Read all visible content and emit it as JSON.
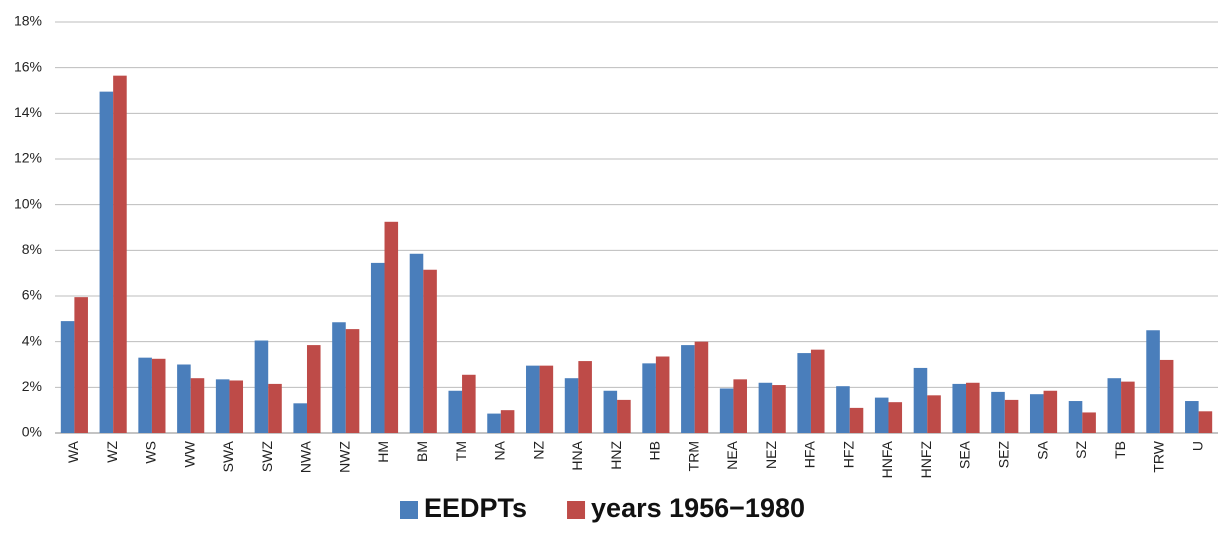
{
  "chart_data": {
    "type": "bar",
    "categories": [
      "WA",
      "WZ",
      "WS",
      "WW",
      "SWA",
      "SWZ",
      "NWA",
      "NWZ",
      "HM",
      "BM",
      "TM",
      "NA",
      "NZ",
      "HNA",
      "HNZ",
      "HB",
      "TRM",
      "NEA",
      "NEZ",
      "HFA",
      "HFZ",
      "HNFA",
      "HNFZ",
      "SEA",
      "SEZ",
      "SA",
      "SZ",
      "TB",
      "TRW",
      "U"
    ],
    "series": [
      {
        "name": "EEDPTs",
        "color": "#4a7ebb",
        "values": [
          4.9,
          14.95,
          3.3,
          3.0,
          2.35,
          4.05,
          1.3,
          4.85,
          7.45,
          7.85,
          1.85,
          0.85,
          2.95,
          2.4,
          1.85,
          3.05,
          3.85,
          1.95,
          2.2,
          3.5,
          2.05,
          1.55,
          2.85,
          2.15,
          1.8,
          1.7,
          1.4,
          2.4,
          4.5,
          1.4
        ]
      },
      {
        "name": "years 1956−1980",
        "color": "#be4b48",
        "values": [
          5.95,
          15.65,
          3.25,
          2.4,
          2.3,
          2.15,
          3.85,
          4.55,
          9.25,
          7.15,
          2.55,
          1.0,
          2.95,
          3.15,
          1.45,
          3.35,
          4.0,
          2.35,
          2.1,
          3.65,
          1.1,
          1.35,
          1.65,
          2.2,
          1.45,
          1.85,
          0.9,
          2.25,
          3.2,
          0.95
        ]
      }
    ],
    "ylim": [
      0,
      18
    ],
    "yticks": [
      {
        "value": 0,
        "label": "0%"
      },
      {
        "value": 2,
        "label": "2%"
      },
      {
        "value": 4,
        "label": "4%"
      },
      {
        "value": 6,
        "label": "6%"
      },
      {
        "value": 8,
        "label": "8%"
      },
      {
        "value": 10,
        "label": "10%"
      },
      {
        "value": 12,
        "label": "12%"
      },
      {
        "value": 14,
        "label": "14%"
      },
      {
        "value": 16,
        "label": "16%"
      },
      {
        "value": 18,
        "label": "18%"
      }
    ],
    "grid": true,
    "legend": "bottom"
  }
}
